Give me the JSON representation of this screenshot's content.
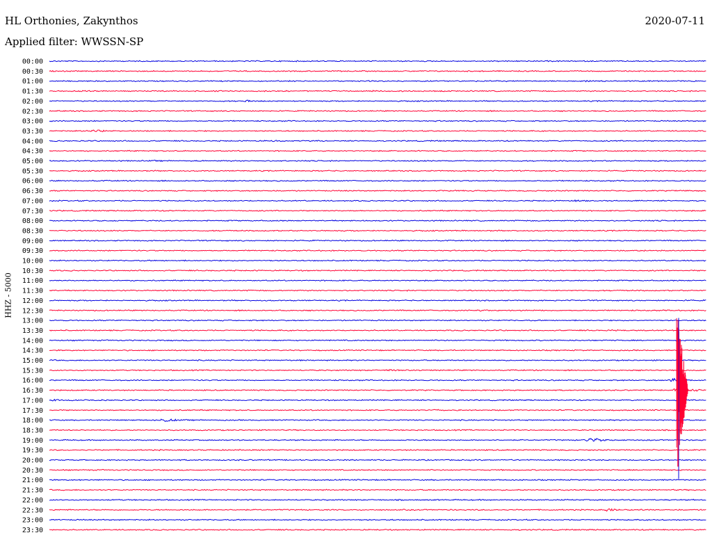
{
  "header": {
    "station": "HL Orthonies, Zakynthos",
    "date": "2020-07-11",
    "filter": "Applied filter: WWSSN-SP",
    "channel": "HHZ - 5000"
  },
  "colors": {
    "blue": "#0000e0",
    "red": "#ff0033",
    "text": "#000000"
  },
  "chart_data": {
    "type": "line",
    "title": "HL Orthonies, Zakynthos",
    "ylabel": "HHZ - 5000",
    "grid": false,
    "series_color_order": [
      "blue",
      "red"
    ],
    "rows": [
      {
        "time": "00:00",
        "color": "blue"
      },
      {
        "time": "00:30",
        "color": "red"
      },
      {
        "time": "01:00",
        "color": "blue"
      },
      {
        "time": "01:30",
        "color": "red"
      },
      {
        "time": "02:00",
        "color": "blue"
      },
      {
        "time": "02:30",
        "color": "red"
      },
      {
        "time": "03:00",
        "color": "blue"
      },
      {
        "time": "03:30",
        "color": "red"
      },
      {
        "time": "04:00",
        "color": "blue"
      },
      {
        "time": "04:30",
        "color": "red"
      },
      {
        "time": "05:00",
        "color": "blue"
      },
      {
        "time": "05:30",
        "color": "red"
      },
      {
        "time": "06:00",
        "color": "blue"
      },
      {
        "time": "06:30",
        "color": "red"
      },
      {
        "time": "07:00",
        "color": "blue"
      },
      {
        "time": "07:30",
        "color": "red"
      },
      {
        "time": "08:00",
        "color": "blue"
      },
      {
        "time": "08:30",
        "color": "red"
      },
      {
        "time": "09:00",
        "color": "blue"
      },
      {
        "time": "09:30",
        "color": "red"
      },
      {
        "time": "10:00",
        "color": "blue"
      },
      {
        "time": "10:30",
        "color": "red"
      },
      {
        "time": "11:00",
        "color": "blue"
      },
      {
        "time": "11:30",
        "color": "red"
      },
      {
        "time": "12:00",
        "color": "blue"
      },
      {
        "time": "12:30",
        "color": "red"
      },
      {
        "time": "13:00",
        "color": "blue"
      },
      {
        "time": "13:30",
        "color": "red"
      },
      {
        "time": "14:00",
        "color": "blue"
      },
      {
        "time": "14:30",
        "color": "red"
      },
      {
        "time": "15:00",
        "color": "blue"
      },
      {
        "time": "15:30",
        "color": "red"
      },
      {
        "time": "16:00",
        "color": "blue"
      },
      {
        "time": "16:30",
        "color": "red"
      },
      {
        "time": "17:00",
        "color": "blue"
      },
      {
        "time": "17:30",
        "color": "red"
      },
      {
        "time": "18:00",
        "color": "blue"
      },
      {
        "time": "18:30",
        "color": "red"
      },
      {
        "time": "19:00",
        "color": "blue"
      },
      {
        "time": "19:30",
        "color": "red"
      },
      {
        "time": "20:00",
        "color": "blue"
      },
      {
        "time": "20:30",
        "color": "red"
      },
      {
        "time": "21:00",
        "color": "blue"
      },
      {
        "time": "21:30",
        "color": "red"
      },
      {
        "time": "22:00",
        "color": "blue"
      },
      {
        "time": "22:30",
        "color": "red"
      },
      {
        "time": "23:00",
        "color": "blue"
      },
      {
        "time": "23:30",
        "color": "red"
      }
    ],
    "events": [
      {
        "time": "01:00",
        "minute": 24.5,
        "amplitude": 1.5
      },
      {
        "time": "01:30",
        "minute": 2.0,
        "amplitude": 1.2
      },
      {
        "time": "01:30",
        "minute": 14.8,
        "amplitude": 1.5
      },
      {
        "time": "02:00",
        "minute": 8.9,
        "amplitude": 1.8
      },
      {
        "time": "03:30",
        "minute": 2.0,
        "amplitude": 2.5
      },
      {
        "time": "04:00",
        "minute": 10.3,
        "amplitude": 1.6
      },
      {
        "time": "05:00",
        "minute": 4.7,
        "amplitude": 1.4
      },
      {
        "time": "06:30",
        "minute": 18.1,
        "amplitude": 1.6
      },
      {
        "time": "06:30",
        "minute": 28.8,
        "amplitude": 1.3
      },
      {
        "time": "07:00",
        "minute": 24.1,
        "amplitude": 1.8
      },
      {
        "time": "09:30",
        "minute": 27.0,
        "amplitude": 1.4
      },
      {
        "time": "12:30",
        "minute": 19.5,
        "amplitude": 2.0
      },
      {
        "time": "13:30",
        "minute": 25.5,
        "amplitude": 1.2
      },
      {
        "time": "15:30",
        "minute": 15.5,
        "amplitude": 1.4
      },
      {
        "time": "16:00",
        "minute": 28.5,
        "amplitude": 3.8
      },
      {
        "time": "16:30",
        "minute": 28.7,
        "amplitude": 5.5
      },
      {
        "time": "17:00",
        "minute": 0.2,
        "amplitude": 2.0
      },
      {
        "time": "17:30",
        "minute": 17.6,
        "amplitude": 1.8
      },
      {
        "time": "18:00",
        "minute": 5.2,
        "amplitude": 3.0
      },
      {
        "time": "19:00",
        "minute": 24.6,
        "amplitude": 4.5
      },
      {
        "time": "22:30",
        "minute": 25.5,
        "amplitude": 2.5
      }
    ]
  }
}
